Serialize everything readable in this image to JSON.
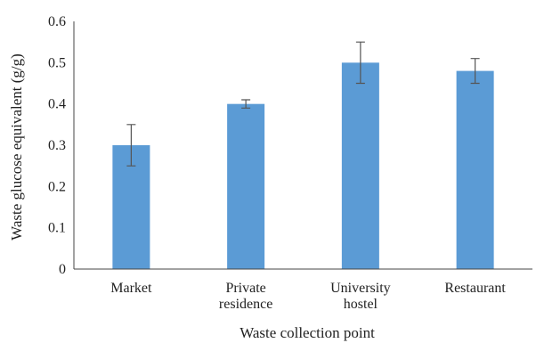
{
  "chart_data": {
    "type": "bar",
    "categories": [
      [
        "Market"
      ],
      [
        "Private",
        "residence"
      ],
      [
        "University",
        "hostel"
      ],
      [
        "Restaurant"
      ]
    ],
    "values": [
      0.3,
      0.4,
      0.5,
      0.48
    ],
    "error_low": [
      0.25,
      0.39,
      0.45,
      0.45
    ],
    "error_high": [
      0.35,
      0.41,
      0.55,
      0.51
    ],
    "xlabel": "Waste collection point",
    "ylabel": "Waste glucose equivalent (g/g)",
    "ylim": [
      0,
      0.6
    ],
    "yticks": [
      "0",
      "0.1",
      "0.2",
      "0.3",
      "0.4",
      "0.5",
      "0.6"
    ],
    "bar_color": "#5b9bd5",
    "grid": false,
    "legend": "none"
  }
}
